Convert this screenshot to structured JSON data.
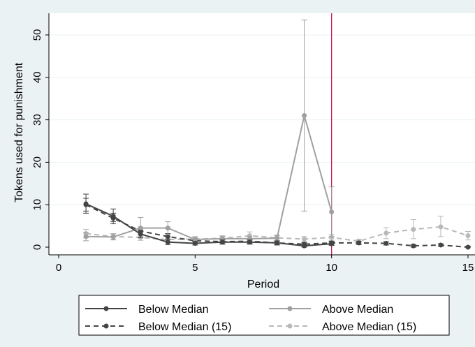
{
  "chart_data": {
    "type": "line",
    "title": "",
    "xlabel": "Period",
    "ylabel": "Tokens used for punishment",
    "xlim": [
      0,
      15
    ],
    "ylim": [
      0,
      55
    ],
    "x_ticks": [
      "0",
      "5",
      "10",
      "15"
    ],
    "y_ticks": [
      "0",
      "10",
      "20",
      "30",
      "40",
      "50"
    ],
    "grid": true,
    "vertical_line_x": 10,
    "legend_position": "bottom",
    "series": [
      {
        "name": "Below Median",
        "color": "#444444",
        "dash": "solid",
        "x": [
          1,
          2,
          3,
          4,
          5,
          6,
          7,
          8,
          9,
          10
        ],
        "y": [
          10.2,
          7.3,
          3.1,
          1.2,
          0.9,
          1.2,
          1.2,
          1.0,
          0.3,
          0.8
        ],
        "err_low": [
          8.0,
          6.0,
          2.2,
          0.6,
          0.5,
          0.7,
          0.7,
          0.5,
          0.0,
          0.4
        ],
        "err_high": [
          12.5,
          9.0,
          4.0,
          1.8,
          1.3,
          1.7,
          1.7,
          1.5,
          0.8,
          1.2
        ]
      },
      {
        "name": "Above Median",
        "color": "#a0a0a0",
        "dash": "solid",
        "x": [
          1,
          2,
          3,
          4,
          5,
          6,
          7,
          8,
          9,
          10
        ],
        "y": [
          2.5,
          2.4,
          4.5,
          4.5,
          1.8,
          2.0,
          2.0,
          2.1,
          31.0,
          8.3
        ],
        "err_low": [
          1.5,
          1.7,
          2.5,
          3.0,
          1.2,
          1.5,
          1.5,
          1.5,
          8.5,
          2.5
        ],
        "err_high": [
          3.5,
          3.1,
          7.0,
          6.0,
          2.4,
          2.5,
          2.5,
          2.7,
          53.5,
          14.2
        ]
      },
      {
        "name": "Below Median (15)",
        "color": "#444444",
        "dash": "dashed",
        "x": [
          1,
          2,
          3,
          4,
          5,
          6,
          7,
          8,
          9,
          10,
          11,
          12,
          13,
          14,
          15
        ],
        "y": [
          10.0,
          6.8,
          3.8,
          2.5,
          1.5,
          1.3,
          1.4,
          1.0,
          0.7,
          1.0,
          1.0,
          0.9,
          0.3,
          0.5,
          0.0
        ],
        "err_low": [
          8.5,
          5.5,
          3.0,
          1.8,
          1.0,
          0.8,
          0.9,
          0.6,
          0.3,
          0.6,
          0.6,
          0.5,
          0.0,
          0.2,
          0.0
        ],
        "err_high": [
          11.5,
          8.0,
          4.6,
          3.2,
          2.0,
          1.8,
          1.9,
          1.4,
          1.1,
          1.4,
          1.4,
          1.3,
          0.6,
          0.8,
          0.2
        ]
      },
      {
        "name": "Above Median (15)",
        "color": "#b8b8b8",
        "dash": "dashed",
        "x": [
          1,
          2,
          3,
          4,
          5,
          6,
          7,
          8,
          9,
          10,
          11,
          12,
          13,
          14,
          15
        ],
        "y": [
          3.2,
          2.5,
          2.3,
          1.8,
          1.9,
          2.1,
          2.7,
          2.2,
          1.9,
          2.3,
          1.4,
          3.3,
          4.2,
          4.8,
          2.7
        ],
        "err_low": [
          2.2,
          1.8,
          1.6,
          1.2,
          1.3,
          1.5,
          1.8,
          1.5,
          1.3,
          1.6,
          0.9,
          2.0,
          2.0,
          2.5,
          1.7
        ],
        "err_high": [
          4.2,
          3.2,
          3.0,
          2.4,
          2.5,
          2.7,
          3.6,
          2.9,
          2.5,
          3.0,
          1.9,
          4.6,
          6.5,
          7.3,
          3.7
        ]
      }
    ]
  }
}
